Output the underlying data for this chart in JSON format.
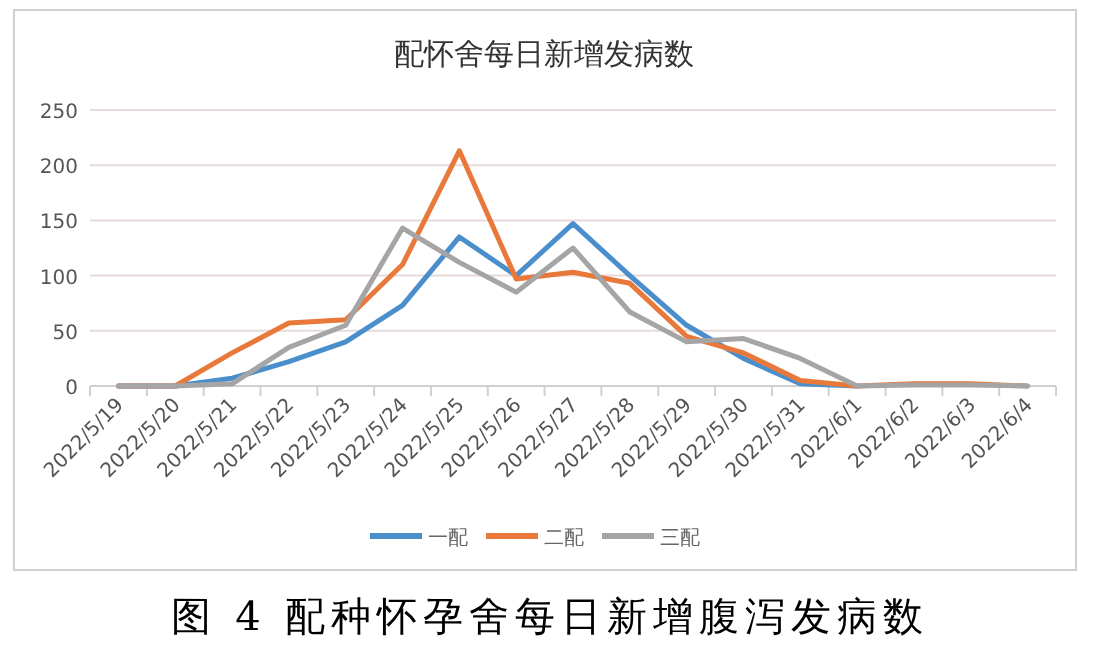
{
  "chart_data": {
    "type": "line",
    "title": "配怀舍每日新增发病数",
    "categories": [
      "2022/5/19",
      "2022/5/20",
      "2022/5/21",
      "2022/5/22",
      "2022/5/23",
      "2022/5/24",
      "2022/5/25",
      "2022/5/26",
      "2022/5/27",
      "2022/5/28",
      "2022/5/29",
      "2022/5/30",
      "2022/5/31",
      "2022/6/1",
      "2022/6/2",
      "2022/6/3",
      "2022/6/4"
    ],
    "series": [
      {
        "name": "一配",
        "color": "#4a8fcc",
        "values": [
          0,
          0,
          7,
          22,
          40,
          73,
          135,
          100,
          147,
          100,
          55,
          25,
          2,
          0,
          null,
          null,
          null
        ]
      },
      {
        "name": "二配",
        "color": "#e9793a",
        "values": [
          0,
          0,
          30,
          57,
          60,
          110,
          213,
          97,
          103,
          93,
          45,
          30,
          5,
          0,
          2,
          2,
          0
        ]
      },
      {
        "name": "三配",
        "color": "#a5a5a5",
        "values": [
          0,
          0,
          2,
          35,
          55,
          143,
          112,
          85,
          125,
          67,
          40,
          43,
          25,
          0,
          1,
          1,
          0
        ]
      }
    ],
    "ylim": [
      0,
      250
    ],
    "yticks": [
      0,
      50,
      100,
      150,
      200,
      250
    ],
    "grid": "y",
    "legend": "bottom",
    "marker": "none",
    "line_style": "solid",
    "annotations": [
      "图 4 配种怀孕舍每日新增腹泻发病数"
    ]
  }
}
